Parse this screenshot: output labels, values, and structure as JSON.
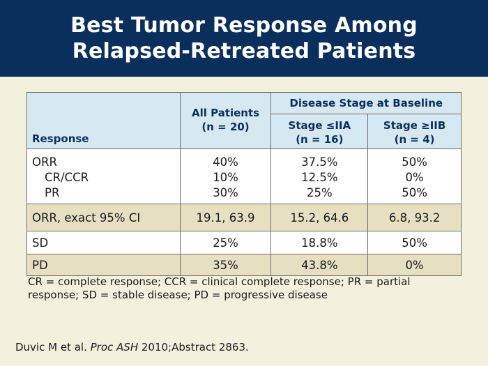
{
  "title": {
    "line1": "Best Tumor Response Among",
    "line2": "Relapsed-Retreated Patients"
  },
  "table": {
    "group_header": "Disease Stage at Baseline",
    "columns": {
      "response": "Response",
      "all_line1": "All Patients",
      "all_line2": "(n = 20)",
      "s1_line1": "Stage ≤IIA",
      "s1_line2": "(n = 16)",
      "s2_line1": "Stage ≥IIB",
      "s2_line2": "(n = 4)"
    },
    "orr_block": {
      "labels": [
        "ORR",
        "CR/CCR",
        "PR"
      ],
      "all": [
        "40%",
        "10%",
        "30%"
      ],
      "stage_iia": [
        "37.5%",
        "12.5%",
        "25%"
      ],
      "stage_iib": [
        "50%",
        "0%",
        "50%"
      ]
    },
    "ci_row": {
      "label": "ORR, exact 95% CI",
      "all": "19.1, 63.9",
      "stage_iia": "15.2, 64.6",
      "stage_iib": "6.8, 93.2"
    },
    "sd_row": {
      "label": "SD",
      "all": "25%",
      "stage_iia": "18.8%",
      "stage_iib": "50%"
    },
    "pd_row": {
      "label": "PD",
      "all": "35%",
      "stage_iia": "43.8%",
      "stage_iib": "0%"
    }
  },
  "footnote": "CR = complete response; CCR = clinical complete response; PR = partial response; SD = stable disease; PD = progressive disease",
  "citation": {
    "authors": "Duvic M et al.",
    "journal": "Proc ASH",
    "rest": "2010;Abstract 2863."
  },
  "colors": {
    "header_bg": "#0b2f5c",
    "slide_bg": "#f4f0de",
    "table_header_bg": "#d6e8f1",
    "tan_row_bg": "#e6dfc1"
  }
}
